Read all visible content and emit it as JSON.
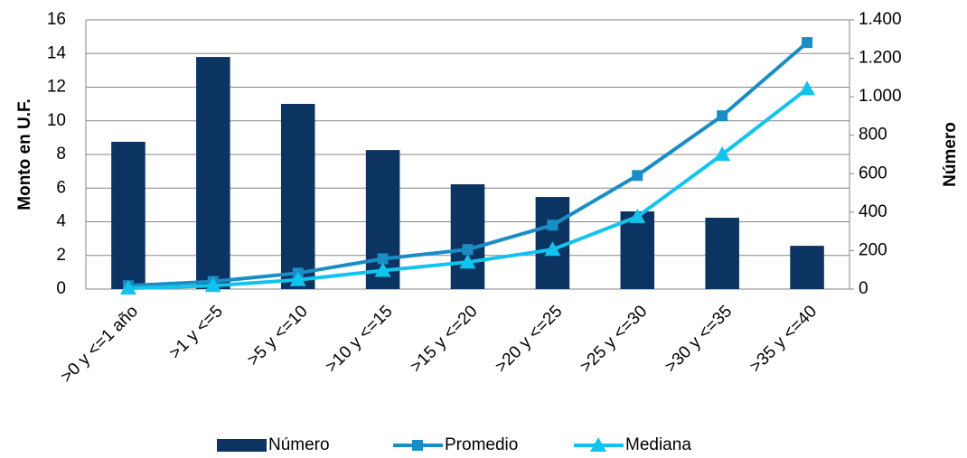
{
  "chart_data": {
    "type": "bar",
    "categories": [
      ">0 y <=1 año",
      ">1 y <=5",
      ">5 y <=10",
      ">10 y <=15",
      ">15 y <=20",
      ">20 y <=25",
      ">25 y <=30",
      ">30 y <=35",
      ">35 y <=40"
    ],
    "ylabel": "Monto en U.F.",
    "y2label": "Número",
    "ylim": [
      0,
      16
    ],
    "yticks": [
      0,
      2,
      4,
      6,
      8,
      10,
      12,
      14,
      16
    ],
    "y2lim": [
      0,
      1400
    ],
    "y2ticks": [
      0,
      200,
      400,
      600,
      800,
      {
        "value": 1000,
        "label": "1.000"
      },
      {
        "value": 1200,
        "label": "1.200"
      },
      {
        "value": 1400,
        "label": "1.400"
      }
    ],
    "grid": true,
    "legend": "bottom",
    "series": [
      {
        "name": "Número",
        "type": "bar",
        "axis": "y2",
        "color": "#0b3463",
        "values": [
          766,
          1207,
          963,
          723,
          545,
          479,
          404,
          371,
          225
        ]
      },
      {
        "name": "Promedio",
        "type": "line",
        "marker": "square",
        "color": "#1a8ec4",
        "values": [
          0.2,
          0.45,
          0.95,
          1.8,
          2.35,
          3.8,
          6.75,
          10.3,
          14.65
        ]
      },
      {
        "name": "Mediana",
        "type": "line",
        "marker": "triangle",
        "color": "#12c3ee",
        "values": [
          0.05,
          0.2,
          0.55,
          1.1,
          1.6,
          2.35,
          4.3,
          8.0,
          11.9
        ]
      }
    ]
  }
}
